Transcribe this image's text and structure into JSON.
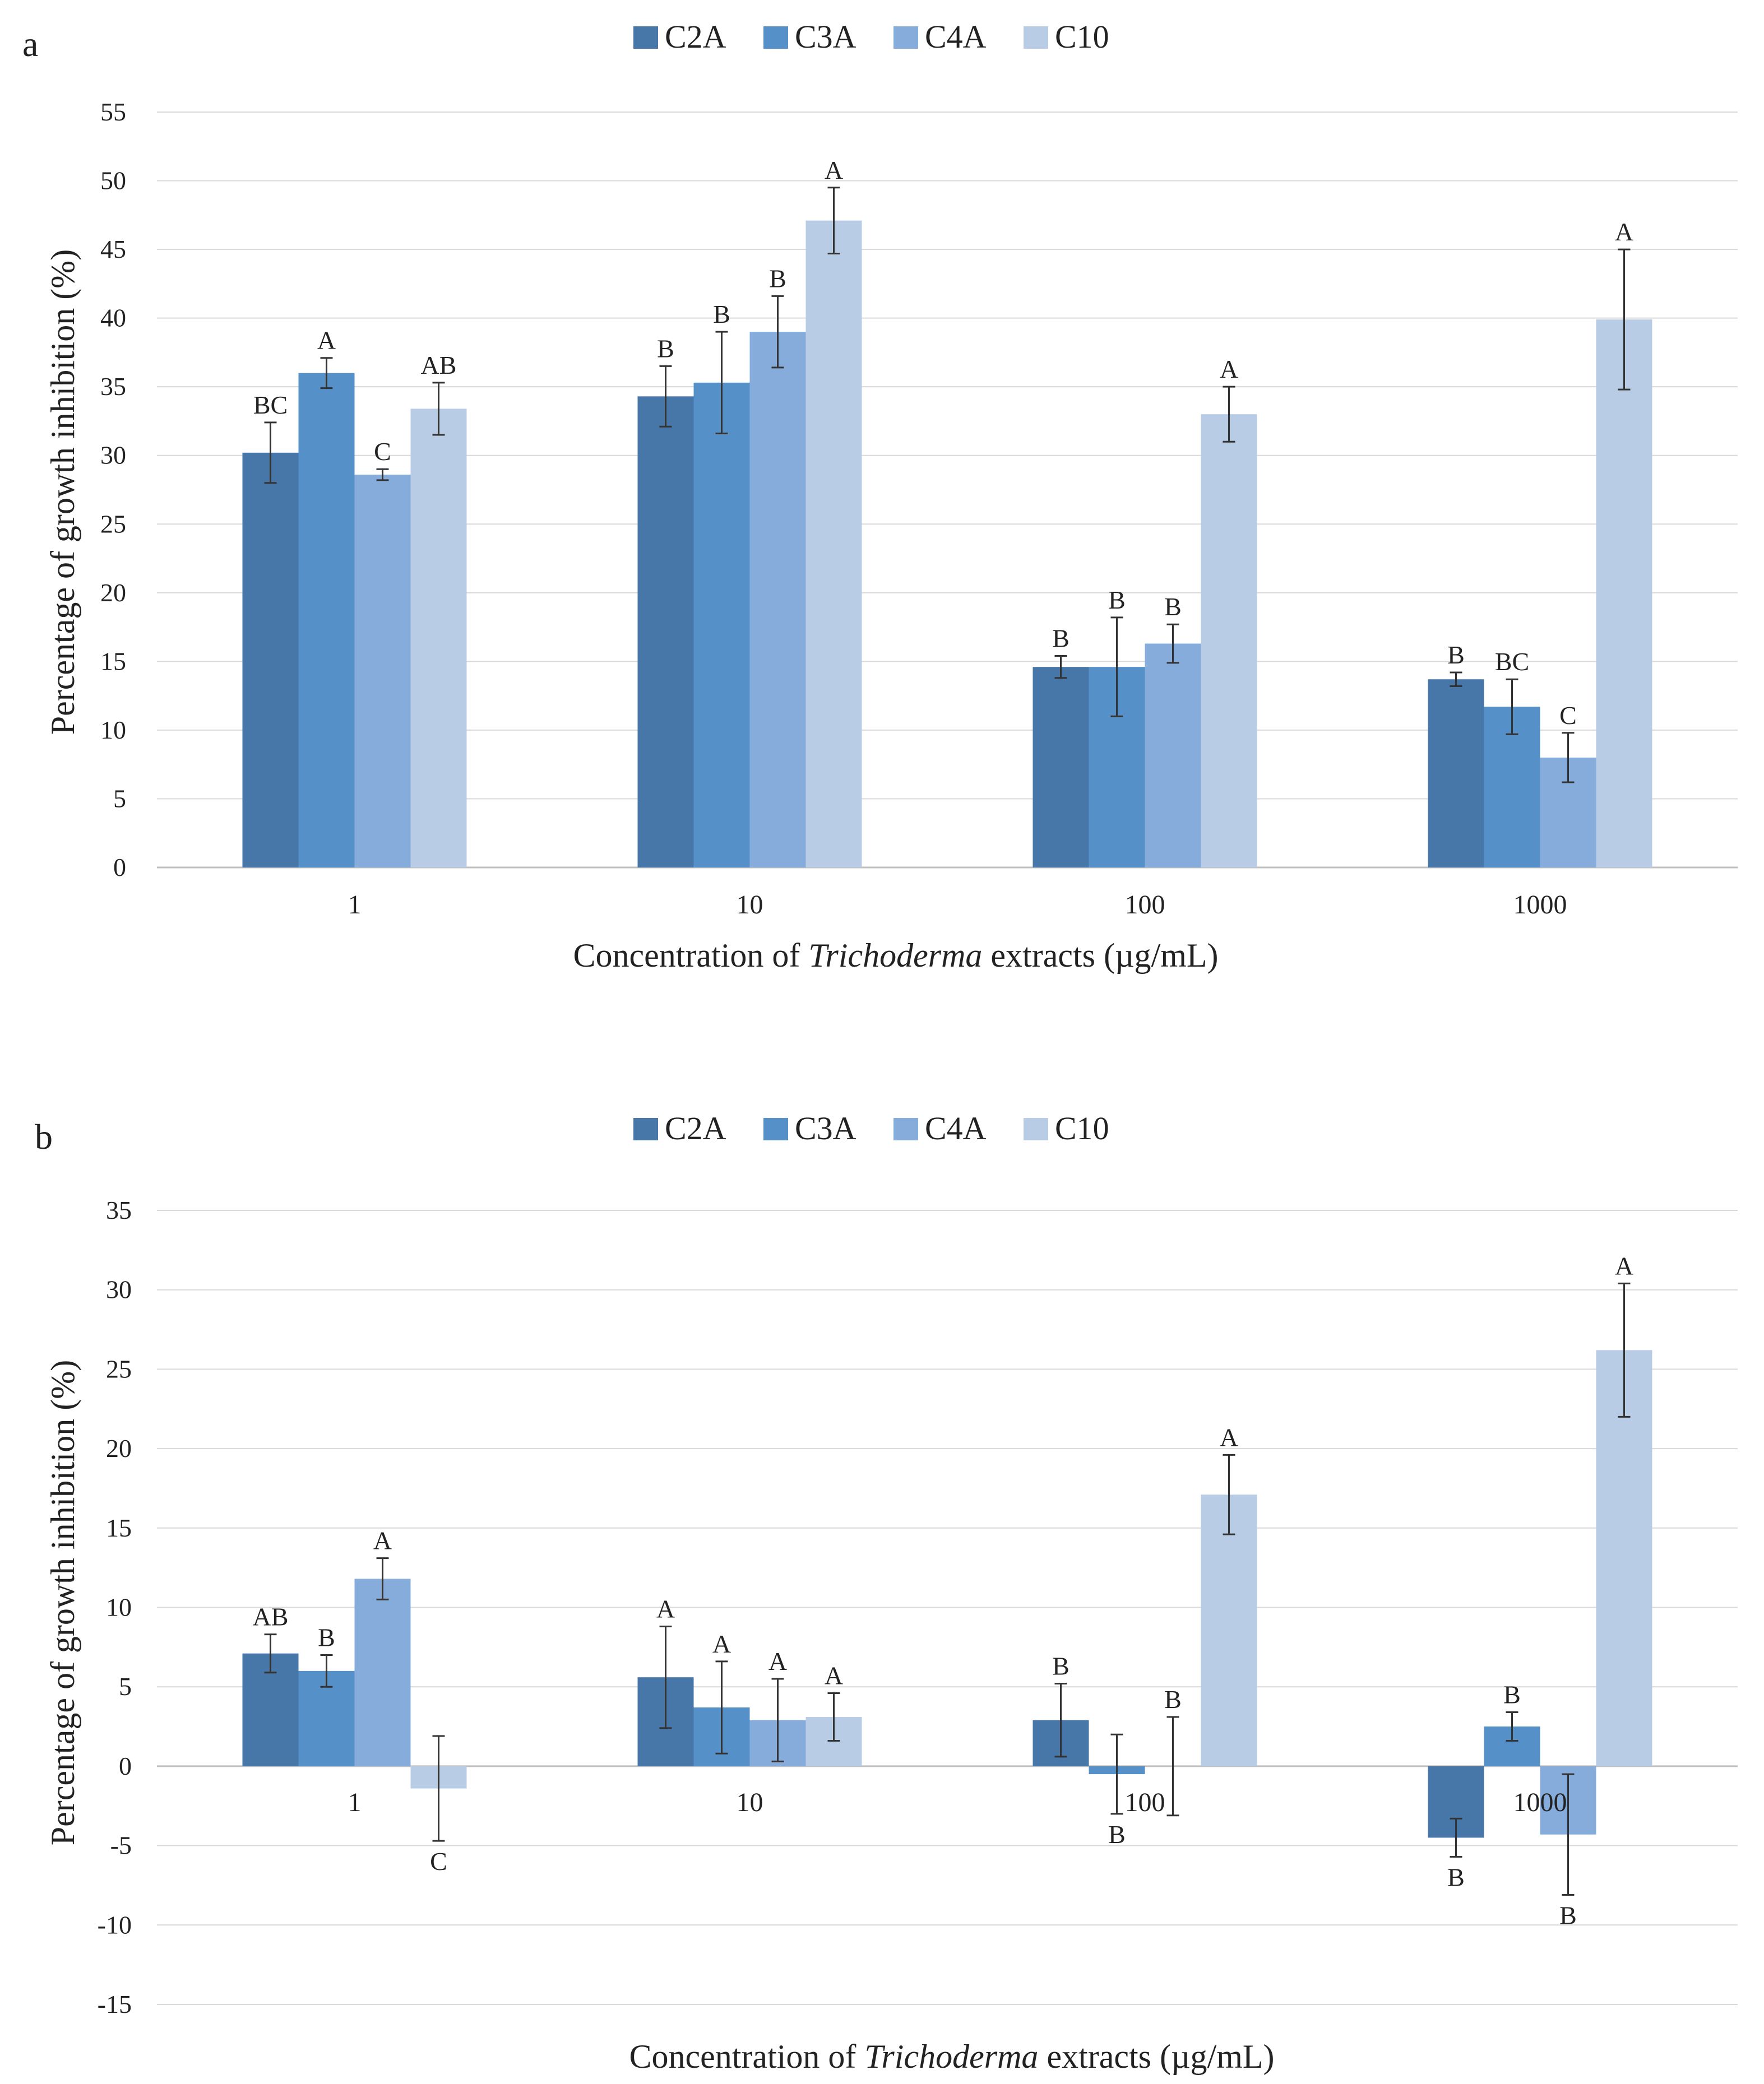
{
  "figure": {
    "panels": [
      "a",
      "b"
    ]
  },
  "colors": {
    "C2A": "#4677a8",
    "C3A": "#5590c8",
    "C4A": "#86acdb",
    "C10": "#b8cce6",
    "grid": "#d9d9d9",
    "axis": "#bfbfbf",
    "errorbar": "#333333"
  },
  "chart_data": [
    {
      "type": "bar",
      "panel": "a",
      "title": "",
      "xlabel_pre": "Concentration of ",
      "xlabel_italic": "Trichoderma",
      "xlabel_post": " extracts (µg/mL)",
      "ylabel": "Percentage of growth inhibition (%)",
      "categories": [
        "1",
        "10",
        "100",
        "1000"
      ],
      "ylim": [
        0,
        55
      ],
      "yticks": [
        0,
        5,
        10,
        15,
        20,
        25,
        30,
        35,
        40,
        45,
        50,
        55
      ],
      "ytick_labels": [
        "0",
        "5",
        "10",
        "15",
        "20",
        "25",
        "30",
        "35",
        "40",
        "45",
        "50",
        "55"
      ],
      "legend": [
        "C2A",
        "C3A",
        "C4A",
        "C10"
      ],
      "legend_position": "top-center",
      "grid": true,
      "series": [
        {
          "name": "C2A",
          "values": [
            30.2,
            34.3,
            14.6,
            13.7
          ],
          "errors": [
            2.2,
            2.2,
            0.8,
            0.5
          ],
          "labels": [
            "BC",
            "B",
            "B",
            "B"
          ]
        },
        {
          "name": "C3A",
          "values": [
            36.0,
            35.3,
            14.6,
            11.7
          ],
          "errors": [
            1.1,
            3.7,
            3.6,
            2.0
          ],
          "labels": [
            "A",
            "B",
            "B",
            "BC"
          ]
        },
        {
          "name": "C4A",
          "values": [
            28.6,
            39.0,
            16.3,
            8.0
          ],
          "errors": [
            0.4,
            2.6,
            1.4,
            1.8
          ],
          "labels": [
            "C",
            "B",
            "B",
            "C"
          ]
        },
        {
          "name": "C10",
          "values": [
            33.4,
            47.1,
            33.0,
            39.9
          ],
          "errors": [
            1.9,
            2.4,
            2.0,
            5.1
          ],
          "labels": [
            "AB",
            "A",
            "A",
            "A"
          ]
        }
      ]
    },
    {
      "type": "bar",
      "panel": "b",
      "title": "",
      "xlabel_pre": "Concentration of ",
      "xlabel_italic": "Trichoderma",
      "xlabel_post": " extracts (µg/mL)",
      "ylabel": "Percentage of growth inhibition (%)",
      "categories": [
        "1",
        "10",
        "100",
        "1000"
      ],
      "ylim": [
        -15,
        35
      ],
      "yticks": [
        -15,
        -10,
        -5,
        0,
        5,
        10,
        15,
        20,
        25,
        30,
        35
      ],
      "ytick_labels": [
        "-15",
        "-10",
        "-5",
        "0",
        "5",
        "10",
        "15",
        "20",
        "25",
        "30",
        "35"
      ],
      "legend": [
        "C2A",
        "C3A",
        "C4A",
        "C10"
      ],
      "legend_position": "top-center",
      "grid": true,
      "series": [
        {
          "name": "C2A",
          "values": [
            7.1,
            5.6,
            2.9,
            -4.5
          ],
          "errors": [
            1.2,
            3.2,
            2.3,
            1.2
          ],
          "labels": [
            "AB",
            "A",
            "B",
            "B"
          ]
        },
        {
          "name": "C3A",
          "values": [
            6.0,
            3.7,
            -0.5,
            2.5
          ],
          "errors": [
            1.0,
            2.9,
            2.5,
            0.9
          ],
          "labels": [
            "B",
            "A",
            "B",
            "B"
          ]
        },
        {
          "name": "C4A",
          "values": [
            11.8,
            2.9,
            0.0,
            -4.3
          ],
          "errors": [
            1.3,
            2.6,
            3.1,
            3.8
          ],
          "labels": [
            "A",
            "A",
            "B",
            "B"
          ]
        },
        {
          "name": "C10",
          "values": [
            -1.4,
            3.1,
            17.1,
            26.2
          ],
          "errors": [
            3.3,
            1.5,
            2.5,
            4.2
          ],
          "labels": [
            "C",
            "A",
            "A",
            "A"
          ]
        }
      ]
    }
  ]
}
